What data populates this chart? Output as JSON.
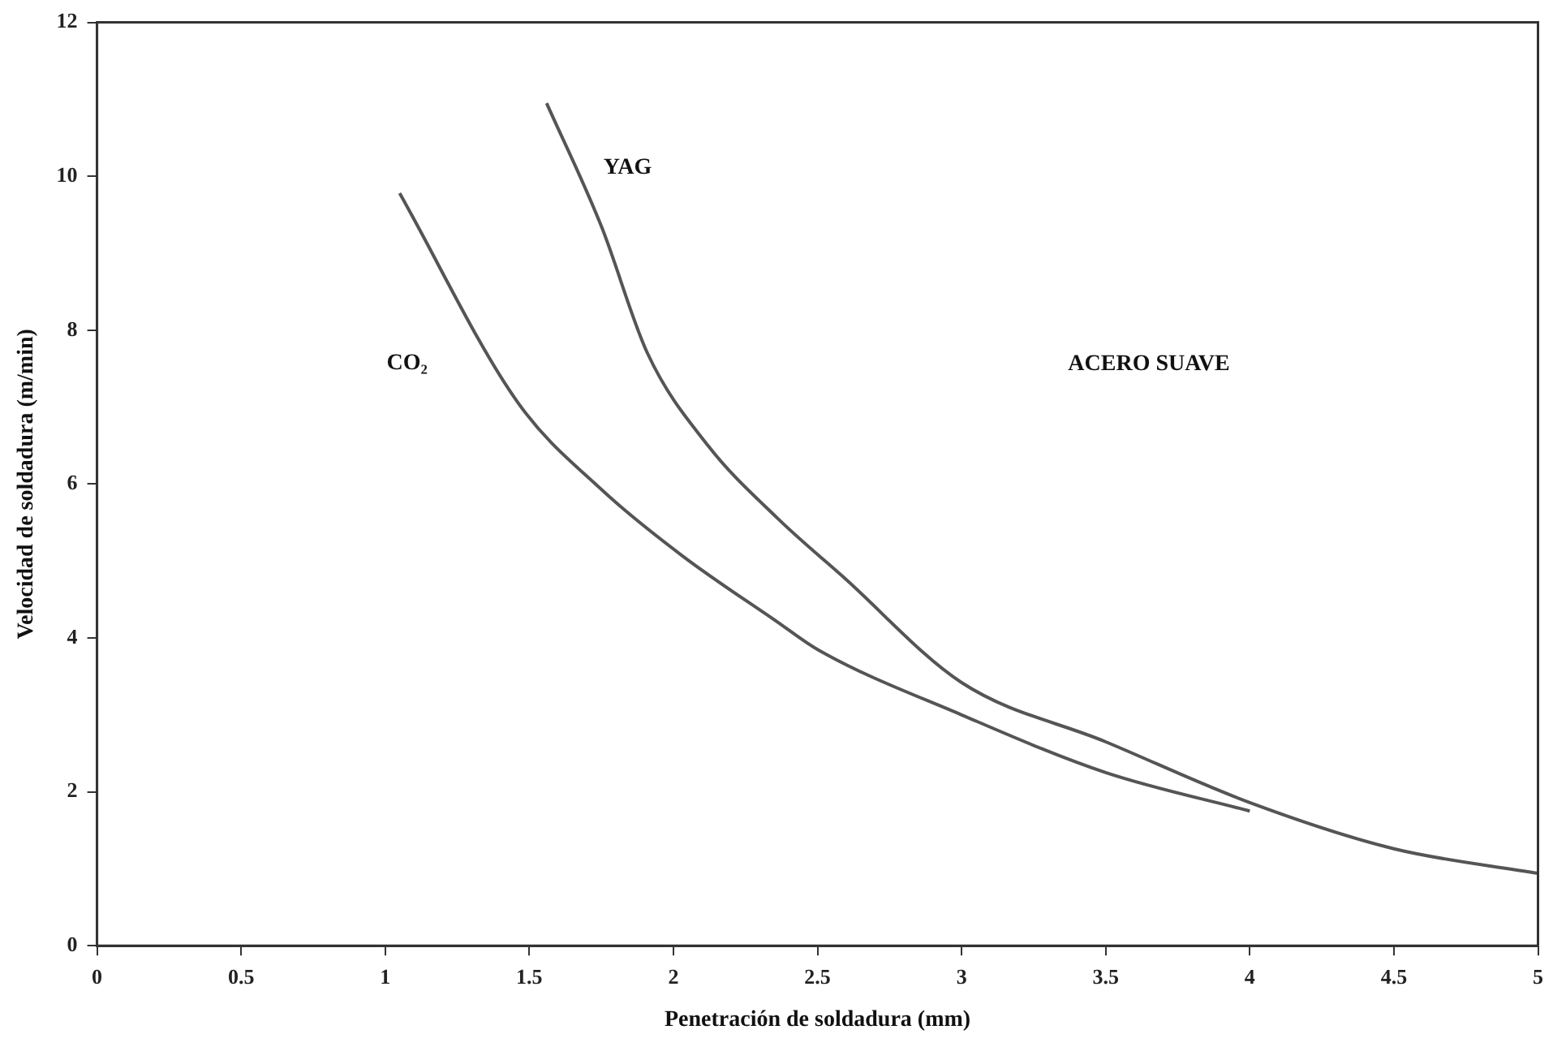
{
  "chart_data": {
    "type": "line",
    "xlabel": "Penetración de soldadura (mm)",
    "ylabel": "Velocidad de soldadura (m/min)",
    "xlim": [
      0,
      5
    ],
    "xticks": [
      0,
      0.5,
      1,
      1.5,
      2,
      2.5,
      3,
      3.5,
      4,
      4.5,
      5
    ],
    "ylim": [
      0,
      12
    ],
    "yticks": [
      0,
      2,
      4,
      6,
      8,
      10,
      12
    ],
    "grid": false,
    "legend": false,
    "marker": "none",
    "line_style": "solid",
    "annotations": [
      "ACERO SUAVE"
    ],
    "series": [
      {
        "name": "CO₂",
        "color": "#555555",
        "x": [
          1.05,
          1.46,
          1.75,
          2.03,
          2.36,
          2.5,
          3,
          3.5,
          4
        ],
        "values": [
          9.78,
          7.06,
          5.93,
          5.07,
          4.21,
          3.85,
          3.0,
          2.25,
          1.75
        ]
      },
      {
        "name": "YAG",
        "color": "#555555",
        "x": [
          1.56,
          1.75,
          1.91,
          2.12,
          2.36,
          2.59,
          3,
          3.5,
          4,
          4.5,
          5
        ],
        "values": [
          10.95,
          9.35,
          7.7,
          6.5,
          5.56,
          4.79,
          3.42,
          2.65,
          1.86,
          1.26,
          0.94
        ]
      }
    ]
  }
}
